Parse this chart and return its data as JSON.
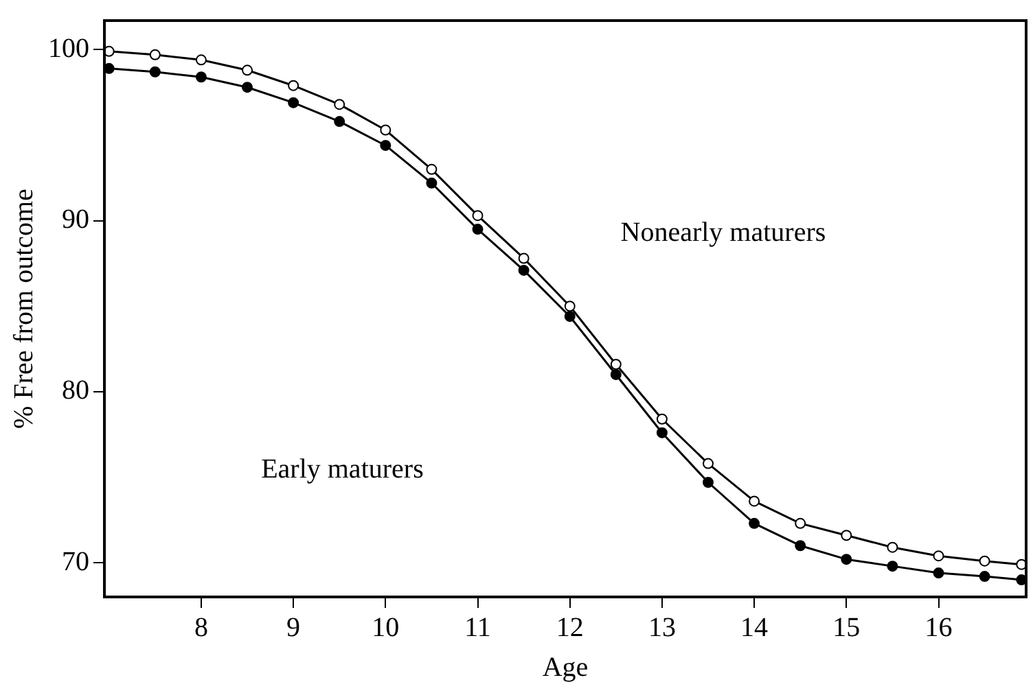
{
  "chart_data": {
    "type": "line",
    "xlabel": "Age",
    "ylabel": "% Free from outcome",
    "x": [
      7,
      7.5,
      8,
      8.5,
      9,
      9.5,
      10,
      10.5,
      11,
      11.5,
      12,
      12.5,
      13,
      13.5,
      14,
      14.5,
      15,
      15.5,
      16,
      16.5,
      16.9
    ],
    "series": [
      {
        "color": "#000000",
        "values": [
          99.9,
          99.7,
          99.4,
          98.8,
          97.9,
          96.8,
          95.3,
          93.0,
          90.3,
          87.8,
          85.0,
          81.6,
          78.4,
          75.8,
          73.6,
          72.3,
          71.6,
          70.9,
          70.4,
          70.1,
          69.9
        ]
      },
      {
        "color": "#000000",
        "values": [
          98.9,
          98.7,
          98.4,
          97.8,
          96.9,
          95.8,
          94.4,
          92.2,
          89.5,
          87.1,
          84.4,
          81.0,
          77.6,
          74.7,
          72.3,
          71.0,
          70.2,
          69.8,
          69.4,
          69.2,
          69.0
        ]
      }
    ],
    "xlim": [
      6.95,
      16.95
    ],
    "xticks": [
      8,
      9,
      10,
      11,
      12,
      13,
      14,
      15,
      16
    ],
    "ylim": [
      68,
      101.7
    ],
    "yticks": [
      70,
      80,
      90,
      100
    ],
    "annotations": [
      "Nonearly maturers",
      "Early maturers"
    ],
    "grid": false,
    "legend": false,
    "marker": "circle"
  }
}
